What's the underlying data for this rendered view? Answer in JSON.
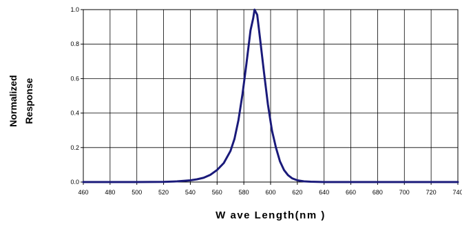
{
  "chart_data": {
    "type": "line",
    "title": "",
    "xlabel": "W ave Length(nm )",
    "ylabel_lines": [
      "Normalized",
      "Response"
    ],
    "xlim": [
      460,
      740
    ],
    "ylim": [
      0,
      1.0
    ],
    "x_ticks": [
      "460",
      "480",
      "500",
      "520",
      "540",
      "560",
      "580",
      "600",
      "620",
      "640",
      "660",
      "680",
      "700",
      "720",
      "740"
    ],
    "y_ticks": [
      "0.0",
      "0.2",
      "0.4",
      "0.6",
      "0.8",
      "1.0"
    ],
    "grid": true,
    "legend": "none",
    "line_color": "#1a1a7a",
    "series": [
      {
        "x": [
          460,
          480,
          500,
          520,
          530,
          540,
          545,
          550,
          555,
          560,
          565,
          570,
          573,
          576,
          579,
          582,
          585,
          587,
          588,
          590,
          592,
          595,
          598,
          601,
          604,
          607,
          610,
          613,
          616,
          620,
          625,
          630,
          640,
          660,
          700,
          740
        ],
        "values": [
          0,
          0,
          0,
          0.001,
          0.004,
          0.01,
          0.016,
          0.025,
          0.042,
          0.07,
          0.11,
          0.18,
          0.25,
          0.36,
          0.51,
          0.69,
          0.88,
          0.95,
          1.0,
          0.97,
          0.84,
          0.64,
          0.45,
          0.3,
          0.2,
          0.12,
          0.07,
          0.04,
          0.022,
          0.01,
          0.004,
          0.002,
          0,
          0,
          0,
          0
        ]
      }
    ]
  }
}
